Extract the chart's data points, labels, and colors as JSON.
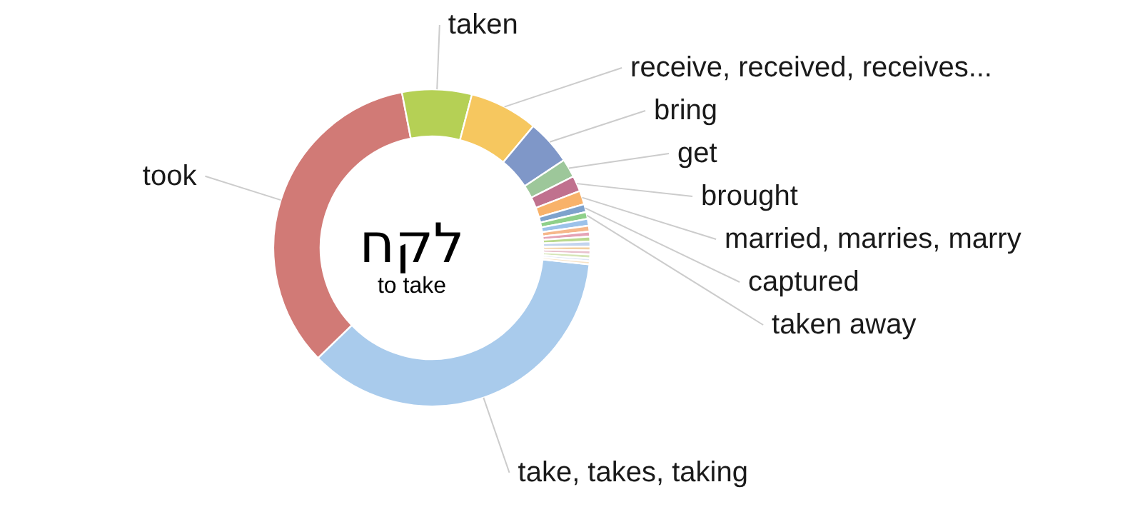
{
  "chart_data": {
    "type": "donut",
    "title": "לקח",
    "subtitle": "to take",
    "categories": [
      "take, takes, taking",
      "took",
      "taken",
      "receive, received, receives...",
      "bring",
      "get",
      "brought",
      "married, marries, marry",
      "captured",
      "taken away",
      null,
      null,
      null,
      null,
      null,
      null,
      null,
      null,
      null,
      null
    ],
    "values": [
      36.1,
      34.2,
      7.1,
      7.0,
      4.6,
      1.9,
      1.6,
      1.4,
      0.8,
      0.7,
      0.7,
      0.6,
      0.5,
      0.5,
      0.5,
      0.4,
      0.4,
      0.4,
      0.3,
      0.3
    ],
    "colors": [
      "#a9cbec",
      "#d17a76",
      "#b5d055",
      "#f6c75f",
      "#7f97c8",
      "#9dc79a",
      "#c0718e",
      "#f8b26a",
      "#7ea2cc",
      "#8fd08a",
      "#9cc2ea",
      "#f6b78a",
      "#e4a3b6",
      "#b9d98e",
      "#c3d4ee",
      "#f3cfa0",
      "#e8c2cd",
      "#d6e6b8",
      "#dde6f4",
      "#f7e3c6"
    ]
  }
}
